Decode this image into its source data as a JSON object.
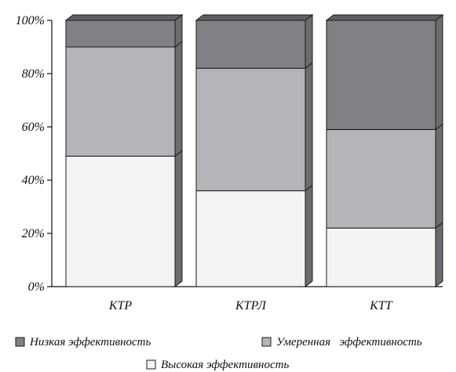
{
  "chart_data": {
    "type": "bar",
    "stacked": true,
    "normalized_percent": true,
    "three_d": true,
    "categories": [
      "КТР",
      "КТРЛ",
      "КТТ"
    ],
    "y_ticks": [
      "0%",
      "20%",
      "40%",
      "60%",
      "80%",
      "100%"
    ],
    "ylim": [
      0,
      100
    ],
    "grid": false,
    "legend_position": "bottom",
    "series": [
      {
        "name": "Высокая эффективность",
        "color": "#f3f4f3",
        "values": [
          49,
          36,
          22
        ]
      },
      {
        "name": "Умеренная эффективность",
        "color": "#b4b5b8",
        "values": [
          41,
          46,
          37
        ]
      },
      {
        "name": "Низкая эффективность",
        "color": "#808184",
        "values": [
          10,
          18,
          41
        ]
      }
    ],
    "legend": [
      {
        "label": "Низкая эффективность",
        "series_index": 2
      },
      {
        "label": "Умеренная   эффективность",
        "series_index": 1
      },
      {
        "label": "Высокая эффективность",
        "series_index": 0
      }
    ]
  }
}
